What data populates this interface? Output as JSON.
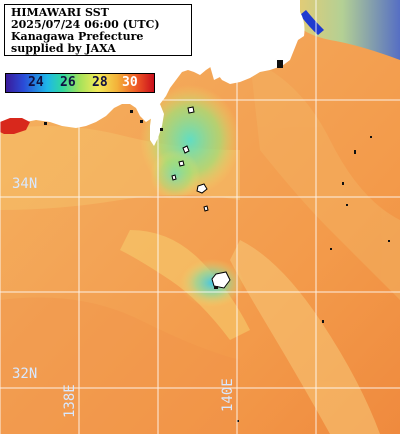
{
  "info": {
    "line1": "HIMAWARI SST",
    "line2": "2025/07/24 06:00 (UTC)",
    "line3": "Kanagawa Prefecture",
    "line4": "supplied by JAXA"
  },
  "colorbar": {
    "ticks": [
      "24",
      "26",
      "28",
      "30"
    ]
  },
  "grid": {
    "lat_labels": [
      "34N",
      "32N"
    ],
    "lon_labels": [
      "138E",
      "140E"
    ]
  },
  "colors": {
    "land": "#ffffff",
    "warm_sea": "#f29a4a",
    "cool_sea": "#5fd7c0",
    "grid": "#ffffff"
  }
}
